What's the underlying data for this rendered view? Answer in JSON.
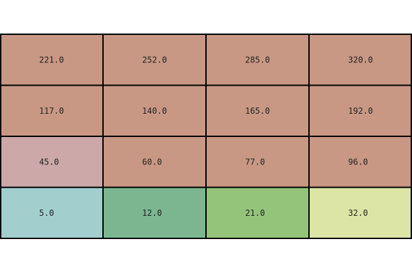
{
  "chart_data": {
    "type": "heatmap",
    "rows": [
      {
        "values": [
          221.0,
          252.0,
          285.0,
          320.0
        ],
        "labels": [
          "221.0",
          "252.0",
          "285.0",
          "320.0"
        ],
        "colors": [
          "#c89884",
          "#c89884",
          "#c89884",
          "#c89884"
        ]
      },
      {
        "values": [
          117.0,
          140.0,
          165.0,
          192.0
        ],
        "labels": [
          "117.0",
          "140.0",
          "165.0",
          "192.0"
        ],
        "colors": [
          "#c89884",
          "#c89884",
          "#c89884",
          "#c89884"
        ]
      },
      {
        "values": [
          45.0,
          60.0,
          77.0,
          96.0
        ],
        "labels": [
          "45.0",
          "60.0",
          "77.0",
          "96.0"
        ],
        "colors": [
          "#cca8a8",
          "#c89884",
          "#c89884",
          "#c89884"
        ]
      },
      {
        "values": [
          5.0,
          12.0,
          21.0,
          32.0
        ],
        "labels": [
          "5.0",
          "12.0",
          "21.0",
          "32.0"
        ],
        "colors": [
          "#a2cece",
          "#7cb690",
          "#94c47a",
          "#dde5a6"
        ]
      }
    ],
    "grid": true,
    "legend": "none",
    "border_color": "#000000"
  }
}
